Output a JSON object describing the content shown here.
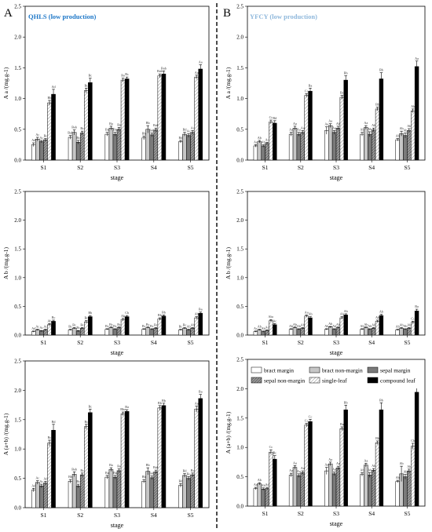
{
  "panels": [
    {
      "letter": "A",
      "title": "QHLS (low production)",
      "title_color": "#1f78c8"
    },
    {
      "letter": "B",
      "title": "YFCY (low production)",
      "title_color": "#8fb8dc"
    }
  ],
  "legend": [
    "bract margin",
    "bract non-margin",
    "sepal margin",
    "sepal non-margin",
    "single-leaf",
    "compound leaf"
  ],
  "chart_data": [
    {
      "type": "bar",
      "xlabel": "stage",
      "ylabel": "A a /(mg.g-1)",
      "ylim": [
        0,
        2.5
      ],
      "yticks": [
        0,
        0.5,
        1.0,
        1.5,
        2.0,
        2.5
      ],
      "categories": [
        "S1",
        "S2",
        "S3",
        "S4",
        "S5"
      ],
      "series": [
        {
          "name": "bract margin",
          "values": [
            0.25,
            0.37,
            0.42,
            0.36,
            0.3
          ],
          "errors": [
            0.03,
            0.03,
            0.03,
            0.03,
            0.02
          ]
        },
        {
          "name": "bract non-margin",
          "values": [
            0.34,
            0.45,
            0.52,
            0.5,
            0.42
          ],
          "errors": [
            0.03,
            0.04,
            0.03,
            0.06,
            0.03
          ]
        },
        {
          "name": "sepal margin",
          "values": [
            0.3,
            0.29,
            0.42,
            0.41,
            0.4
          ],
          "errors": [
            0.02,
            0.03,
            0.03,
            0.03,
            0.03
          ]
        },
        {
          "name": "sepal non-margin",
          "values": [
            0.33,
            0.44,
            0.5,
            0.49,
            0.45
          ],
          "errors": [
            0.02,
            0.03,
            0.03,
            0.03,
            0.03
          ]
        },
        {
          "name": "single-leaf",
          "values": [
            0.93,
            1.13,
            1.3,
            1.37,
            1.35
          ],
          "errors": [
            0.04,
            0.04,
            0.03,
            0.03,
            0.03
          ]
        },
        {
          "name": "compound leaf",
          "values": [
            1.07,
            1.26,
            1.32,
            1.4,
            1.48
          ],
          "errors": [
            0.08,
            0.07,
            0.03,
            0.05,
            0.07
          ]
        }
      ],
      "labels": [
        [
          "Ad",
          "Ac",
          "Ac",
          "Bc",
          "Bb",
          "Ad"
        ],
        [
          "Bab",
          "Bab",
          "Bc",
          "Bc",
          "Bc",
          "Bc"
        ],
        [
          "Ba",
          "Ba",
          "Ba",
          "Ba",
          "Ba",
          "Bc"
        ],
        [
          "Bb",
          "Bb",
          "Bab",
          "Bab",
          "Bab",
          "Bab"
        ],
        [
          "Bd",
          "Bd",
          "Ac",
          "Ac",
          "Aa",
          "Aa"
        ]
      ]
    },
    {
      "type": "bar",
      "xlabel": "stage",
      "ylabel": "A a /(mg.g-1)",
      "ylim": [
        0,
        2.5
      ],
      "yticks": [
        0,
        0.5,
        1.0,
        1.5,
        2.0,
        2.5
      ],
      "categories": [
        "S1",
        "S2",
        "S3",
        "S4",
        "S5"
      ],
      "series": [
        {
          "name": "bract margin",
          "values": [
            0.23,
            0.42,
            0.48,
            0.42,
            0.33
          ],
          "errors": [
            0.02,
            0.03,
            0.06,
            0.03,
            0.02
          ]
        },
        {
          "name": "bract non-margin",
          "values": [
            0.3,
            0.52,
            0.56,
            0.53,
            0.43
          ],
          "errors": [
            0.02,
            0.03,
            0.03,
            0.03,
            0.04
          ]
        },
        {
          "name": "sepal margin",
          "values": [
            0.23,
            0.42,
            0.45,
            0.42,
            0.4
          ],
          "errors": [
            0.02,
            0.03,
            0.03,
            0.04,
            0.04
          ]
        },
        {
          "name": "sepal non-margin",
          "values": [
            0.27,
            0.45,
            0.52,
            0.49,
            0.48
          ],
          "errors": [
            0.02,
            0.03,
            0.03,
            0.03,
            0.03
          ]
        },
        {
          "name": "single-leaf",
          "values": [
            0.62,
            1.05,
            1.02,
            0.83,
            0.8
          ],
          "errors": [
            0.03,
            0.03,
            0.03,
            0.03,
            0.03
          ]
        },
        {
          "name": "compound leaf",
          "values": [
            0.6,
            1.12,
            1.3,
            1.32,
            1.52
          ],
          "errors": [
            0.04,
            0.05,
            0.07,
            0.1,
            0.09
          ]
        }
      ],
      "labels": [
        [
          "Ac",
          "Ab",
          "Ab",
          "Ac",
          "Cc",
          "Bd"
        ],
        [
          "Aa",
          "Aa",
          "Aa",
          "Aa",
          "Cc",
          "Ba"
        ],
        [
          "Aa",
          "Aa",
          "Aa",
          "Ab",
          "Bc",
          "Bb"
        ],
        [
          "Ab",
          "Aa",
          "Ab",
          "Ab",
          "Bb",
          "Bb"
        ],
        [
          "Ab",
          "Ab",
          "Ab",
          "Ab",
          "Ab",
          "Aa"
        ]
      ]
    },
    {
      "type": "bar",
      "xlabel": "stage",
      "ylabel": "A b /(mg.g-1)",
      "ylim": [
        0,
        2.5
      ],
      "yticks": [
        0,
        0.5,
        1.0,
        1.5,
        2.0,
        2.5
      ],
      "categories": [
        "S1",
        "S2",
        "S3",
        "S4",
        "S5"
      ],
      "series": [
        {
          "name": "bract margin",
          "values": [
            0.06,
            0.09,
            0.1,
            0.1,
            0.09
          ],
          "errors": [
            0.01,
            0.01,
            0.01,
            0.01,
            0.01
          ]
        },
        {
          "name": "bract non-margin",
          "values": [
            0.09,
            0.12,
            0.13,
            0.13,
            0.12
          ],
          "errors": [
            0.01,
            0.01,
            0.01,
            0.01,
            0.01
          ]
        },
        {
          "name": "sepal margin",
          "values": [
            0.07,
            0.07,
            0.1,
            0.1,
            0.09
          ],
          "errors": [
            0.01,
            0.01,
            0.01,
            0.01,
            0.01
          ]
        },
        {
          "name": "sepal non-margin",
          "values": [
            0.09,
            0.12,
            0.13,
            0.12,
            0.12
          ],
          "errors": [
            0.01,
            0.01,
            0.01,
            0.01,
            0.01
          ]
        },
        {
          "name": "single-leaf",
          "values": [
            0.18,
            0.23,
            0.27,
            0.28,
            0.3
          ],
          "errors": [
            0.02,
            0.02,
            0.02,
            0.02,
            0.02
          ]
        },
        {
          "name": "compound leaf",
          "values": [
            0.24,
            0.32,
            0.32,
            0.33,
            0.38
          ],
          "errors": [
            0.02,
            0.02,
            0.02,
            0.02,
            0.02
          ]
        }
      ],
      "labels": [
        [
          "Ad",
          "Ac",
          "Ac",
          "Ac",
          "Ab",
          "Bc"
        ],
        [
          "Bc",
          "Bc",
          "Bc",
          "Bc",
          "Bc",
          "Bb"
        ],
        [
          "Bc",
          "Bc",
          "Bc",
          "Bc",
          "Ab",
          "Cb"
        ],
        [
          "Bc",
          "Bc",
          "Bc",
          "Bc",
          "Bb",
          "Bb"
        ],
        [
          "Bc",
          "Bc",
          "Ab",
          "Ab",
          "Ab",
          "Ba"
        ]
      ]
    },
    {
      "type": "bar",
      "xlabel": "stage",
      "ylabel": "A b /(mg.g-1)",
      "ylim": [
        0,
        2.5
      ],
      "yticks": [
        0,
        0.5,
        1.0,
        1.5,
        2.0,
        2.5
      ],
      "categories": [
        "S1",
        "S2",
        "S3",
        "S4",
        "S5"
      ],
      "series": [
        {
          "name": "bract margin",
          "values": [
            0.06,
            0.1,
            0.1,
            0.1,
            0.09
          ],
          "errors": [
            0.01,
            0.01,
            0.01,
            0.01,
            0.01
          ]
        },
        {
          "name": "bract non-margin",
          "values": [
            0.09,
            0.13,
            0.14,
            0.13,
            0.12
          ],
          "errors": [
            0.01,
            0.01,
            0.01,
            0.01,
            0.01
          ]
        },
        {
          "name": "sepal margin",
          "values": [
            0.06,
            0.1,
            0.1,
            0.1,
            0.1
          ],
          "errors": [
            0.01,
            0.01,
            0.01,
            0.01,
            0.01
          ]
        },
        {
          "name": "sepal non-margin",
          "values": [
            0.08,
            0.12,
            0.13,
            0.12,
            0.12
          ],
          "errors": [
            0.01,
            0.01,
            0.01,
            0.01,
            0.01
          ]
        },
        {
          "name": "single-leaf",
          "values": [
            0.25,
            0.33,
            0.3,
            0.24,
            0.22
          ],
          "errors": [
            0.02,
            0.02,
            0.02,
            0.02,
            0.02
          ]
        },
        {
          "name": "compound leaf",
          "values": [
            0.18,
            0.3,
            0.35,
            0.34,
            0.42
          ],
          "errors": [
            0.02,
            0.02,
            0.02,
            0.02,
            0.03
          ]
        }
      ],
      "labels": [
        [
          "Ac",
          "Ab",
          "Ab",
          "Ac",
          "Abc",
          "Ac"
        ],
        [
          "Ab",
          "Ab",
          "Ab",
          "Ab",
          "Aa",
          "Ab"
        ],
        [
          "Ab",
          "Ab",
          "Ab",
          "Ab",
          "Ab",
          "Ab"
        ],
        [
          "Ab",
          "Ab",
          "Ab",
          "Ab",
          "Ab",
          "Ab"
        ],
        [
          "Ab",
          "Ab",
          "Ab",
          "Ab",
          "Cc",
          "Ba"
        ]
      ]
    },
    {
      "type": "bar",
      "xlabel": "stage",
      "ylabel": "A (a+b) /(mg.g-1)",
      "ylim": [
        0,
        2.5
      ],
      "yticks": [
        0,
        0.5,
        1.0,
        1.5,
        2.0,
        2.5
      ],
      "categories": [
        "S1",
        "S2",
        "S3",
        "S4",
        "S5"
      ],
      "series": [
        {
          "name": "bract margin",
          "values": [
            0.3,
            0.45,
            0.52,
            0.45,
            0.38
          ],
          "errors": [
            0.03,
            0.03,
            0.03,
            0.03,
            0.03
          ]
        },
        {
          "name": "bract non-margin",
          "values": [
            0.43,
            0.57,
            0.65,
            0.62,
            0.55
          ],
          "errors": [
            0.03,
            0.04,
            0.03,
            0.06,
            0.03
          ]
        },
        {
          "name": "sepal margin",
          "values": [
            0.37,
            0.37,
            0.52,
            0.51,
            0.5
          ],
          "errors": [
            0.03,
            0.03,
            0.03,
            0.03,
            0.03
          ]
        },
        {
          "name": "sepal non-margin",
          "values": [
            0.42,
            0.56,
            0.63,
            0.61,
            0.56
          ],
          "errors": [
            0.03,
            0.03,
            0.03,
            0.03,
            0.03
          ]
        },
        {
          "name": "single-leaf",
          "values": [
            1.1,
            1.38,
            1.6,
            1.7,
            1.68
          ],
          "errors": [
            0.05,
            0.04,
            0.03,
            0.04,
            0.05
          ]
        },
        {
          "name": "compound leaf",
          "values": [
            1.32,
            1.62,
            1.64,
            1.74,
            1.86
          ],
          "errors": [
            0.1,
            0.06,
            0.03,
            0.04,
            0.07
          ]
        }
      ],
      "labels": [
        [
          "Ad",
          "Ac",
          "Ac",
          "Ad",
          "Bc",
          "Bd"
        ],
        [
          "Bb",
          "Bab",
          "Bc",
          "Bc",
          "Bc",
          "Bc"
        ],
        [
          "Ba",
          "Ba",
          "Ba",
          "Ba",
          "Bba",
          "Ba"
        ],
        [
          "Bb",
          "Bb",
          "Bab",
          "Bab",
          "Bb",
          "Bb"
        ],
        [
          "Bd",
          "Bd",
          "Bc",
          "Bc",
          "Aa",
          "Ba"
        ]
      ]
    },
    {
      "type": "bar",
      "xlabel": "stage",
      "ylabel": "A (a+b) /(mg.g-1)",
      "ylim": [
        0,
        2.5
      ],
      "yticks": [
        0,
        0.5,
        1.0,
        1.5,
        2.0,
        2.5
      ],
      "categories": [
        "S1",
        "S2",
        "S3",
        "S4",
        "S5"
      ],
      "series": [
        {
          "name": "bract margin",
          "values": [
            0.3,
            0.53,
            0.6,
            0.54,
            0.42
          ],
          "errors": [
            0.02,
            0.03,
            0.06,
            0.03,
            0.02
          ]
        },
        {
          "name": "bract non-margin",
          "values": [
            0.38,
            0.66,
            0.72,
            0.7,
            0.55
          ],
          "errors": [
            0.02,
            0.03,
            0.03,
            0.03,
            0.13
          ]
        },
        {
          "name": "sepal margin",
          "values": [
            0.29,
            0.52,
            0.55,
            0.53,
            0.5
          ],
          "errors": [
            0.02,
            0.03,
            0.03,
            0.04,
            0.04
          ]
        },
        {
          "name": "sepal non-margin",
          "values": [
            0.3,
            0.57,
            0.65,
            0.61,
            0.6
          ],
          "errors": [
            0.02,
            0.03,
            0.03,
            0.03,
            0.03
          ]
        },
        {
          "name": "single-leaf",
          "values": [
            0.92,
            1.38,
            1.32,
            1.08,
            1.02
          ],
          "errors": [
            0.04,
            0.03,
            0.03,
            0.03,
            0.05
          ]
        },
        {
          "name": "compound leaf",
          "values": [
            0.8,
            1.44,
            1.64,
            1.64,
            1.94
          ],
          "errors": [
            0.06,
            0.04,
            0.08,
            0.12,
            0.12
          ]
        }
      ],
      "labels": [
        [
          "Ad",
          "Ab",
          "Ab",
          "Ad",
          "Cc",
          "Bc"
        ],
        [
          "Aa",
          "Aa",
          "Aa",
          "Aa",
          "Cc",
          "Cc"
        ],
        [
          "Aa",
          "Aa",
          "Aa",
          "Aa",
          "Ba",
          "Bb"
        ],
        [
          "Ab",
          "Aa",
          "Ab",
          "Ab",
          "Bb",
          "Bb"
        ],
        [
          "Ab",
          "Ab",
          "Ab",
          "Ab",
          "Cb",
          "Ba"
        ]
      ]
    }
  ]
}
